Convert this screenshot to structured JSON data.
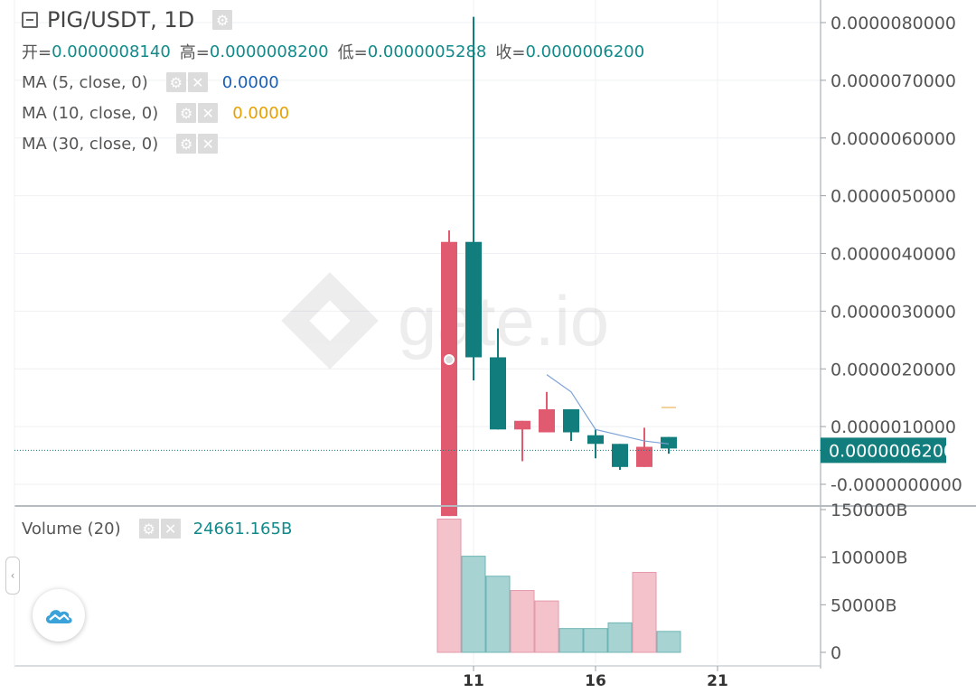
{
  "header": {
    "symbol": "PIG/USDT, 1D",
    "ohlc": [
      {
        "key": "开=",
        "value": "0.0000008140"
      },
      {
        "key": "高=",
        "value": "0.0000008200"
      },
      {
        "key": "低=",
        "value": "0.0000005288"
      },
      {
        "key": "收=",
        "value": "0.0000006200"
      }
    ]
  },
  "indicators": [
    {
      "label": "MA (5, close, 0)",
      "value": "0.0000",
      "color": "#1a5fb4"
    },
    {
      "label": "MA (10, close, 0)",
      "value": "0.0000",
      "color": "#e6a100"
    },
    {
      "label": "MA (30, close, 0)",
      "value": ""
    }
  ],
  "volume_indicator": {
    "label": "Volume (20)",
    "value": "24661.165B"
  },
  "watermark": "gate.io",
  "colors": {
    "up": "#e05b6f",
    "down": "#127d7d",
    "vol_up": "#f4c2cb",
    "vol_down": "#a7d3d3",
    "axis_text": "#555555",
    "price_label_bg": "#127d7d",
    "ma5": "#7da2d6"
  },
  "chart_data": {
    "type": "candlestick",
    "price_axis": {
      "ticks": [
        "0.0000080000",
        "0.0000070000",
        "0.0000060000",
        "0.0000050000",
        "0.0000040000",
        "0.0000030000",
        "0.0000020000",
        "0.0000010000",
        "-0.0000000000"
      ],
      "range": [
        -9e-07,
        8.5e-06
      ],
      "last_price_label": "0.0000006200",
      "last_price": 6.2e-07
    },
    "volume_axis": {
      "ticks": [
        "150000B",
        "100000B",
        "50000B",
        "0"
      ],
      "range": [
        0,
        155000
      ]
    },
    "x_axis": {
      "ticks": [
        "11",
        "16",
        "21"
      ],
      "tick_days": [
        11,
        16,
        21
      ]
    },
    "candles": [
      {
        "day": 10,
        "open": -5.5e-07,
        "high": 4.4e-06,
        "low": -5.5e-07,
        "close": 4.2e-06
      },
      {
        "day": 11,
        "open": 4.2e-06,
        "high": 8.1e-06,
        "low": 1.8e-06,
        "close": 2.2e-06
      },
      {
        "day": 12,
        "open": 2.2e-06,
        "high": 2.7e-06,
        "low": 9.5e-07,
        "close": 9.5e-07
      },
      {
        "day": 13,
        "open": 9.5e-07,
        "high": 1.1e-06,
        "low": 4e-07,
        "close": 1.1e-06
      },
      {
        "day": 14,
        "open": 9e-07,
        "high": 1.6e-06,
        "low": 9e-07,
        "close": 1.3e-06
      },
      {
        "day": 15,
        "open": 1.3e-06,
        "high": 1.3e-06,
        "low": 7.5e-07,
        "close": 9e-07
      },
      {
        "day": 16,
        "open": 8.5e-07,
        "high": 9.5e-07,
        "low": 4.5e-07,
        "close": 7e-07
      },
      {
        "day": 17,
        "open": 7e-07,
        "high": 7e-07,
        "low": 2.5e-07,
        "close": 3e-07
      },
      {
        "day": 18,
        "open": 3e-07,
        "high": 9.8e-07,
        "low": 3e-07,
        "close": 6.5e-07
      },
      {
        "day": 19,
        "open": 8.2e-07,
        "high": 8.2e-07,
        "low": 5.3e-07,
        "close": 6.2e-07
      }
    ],
    "volumes": [
      {
        "day": 10,
        "value": 140000,
        "dir": "up"
      },
      {
        "day": 11,
        "value": 101000,
        "dir": "down"
      },
      {
        "day": 12,
        "value": 80000,
        "dir": "down"
      },
      {
        "day": 13,
        "value": 65000,
        "dir": "up"
      },
      {
        "day": 14,
        "value": 54000,
        "dir": "up"
      },
      {
        "day": 15,
        "value": 25000,
        "dir": "down"
      },
      {
        "day": 16,
        "value": 25000,
        "dir": "down"
      },
      {
        "day": 17,
        "value": 31000,
        "dir": "down"
      },
      {
        "day": 18,
        "value": 84000,
        "dir": "up"
      },
      {
        "day": 19,
        "value": 22000,
        "dir": "down"
      }
    ],
    "ma5": [
      {
        "day": 14,
        "value": 1.9e-06
      },
      {
        "day": 15,
        "value": 1.6e-06
      },
      {
        "day": 16,
        "value": 9.5e-07
      },
      {
        "day": 17,
        "value": 8.5e-07
      },
      {
        "day": 18,
        "value": 7.5e-07
      },
      {
        "day": 19,
        "value": 7e-07
      }
    ]
  }
}
